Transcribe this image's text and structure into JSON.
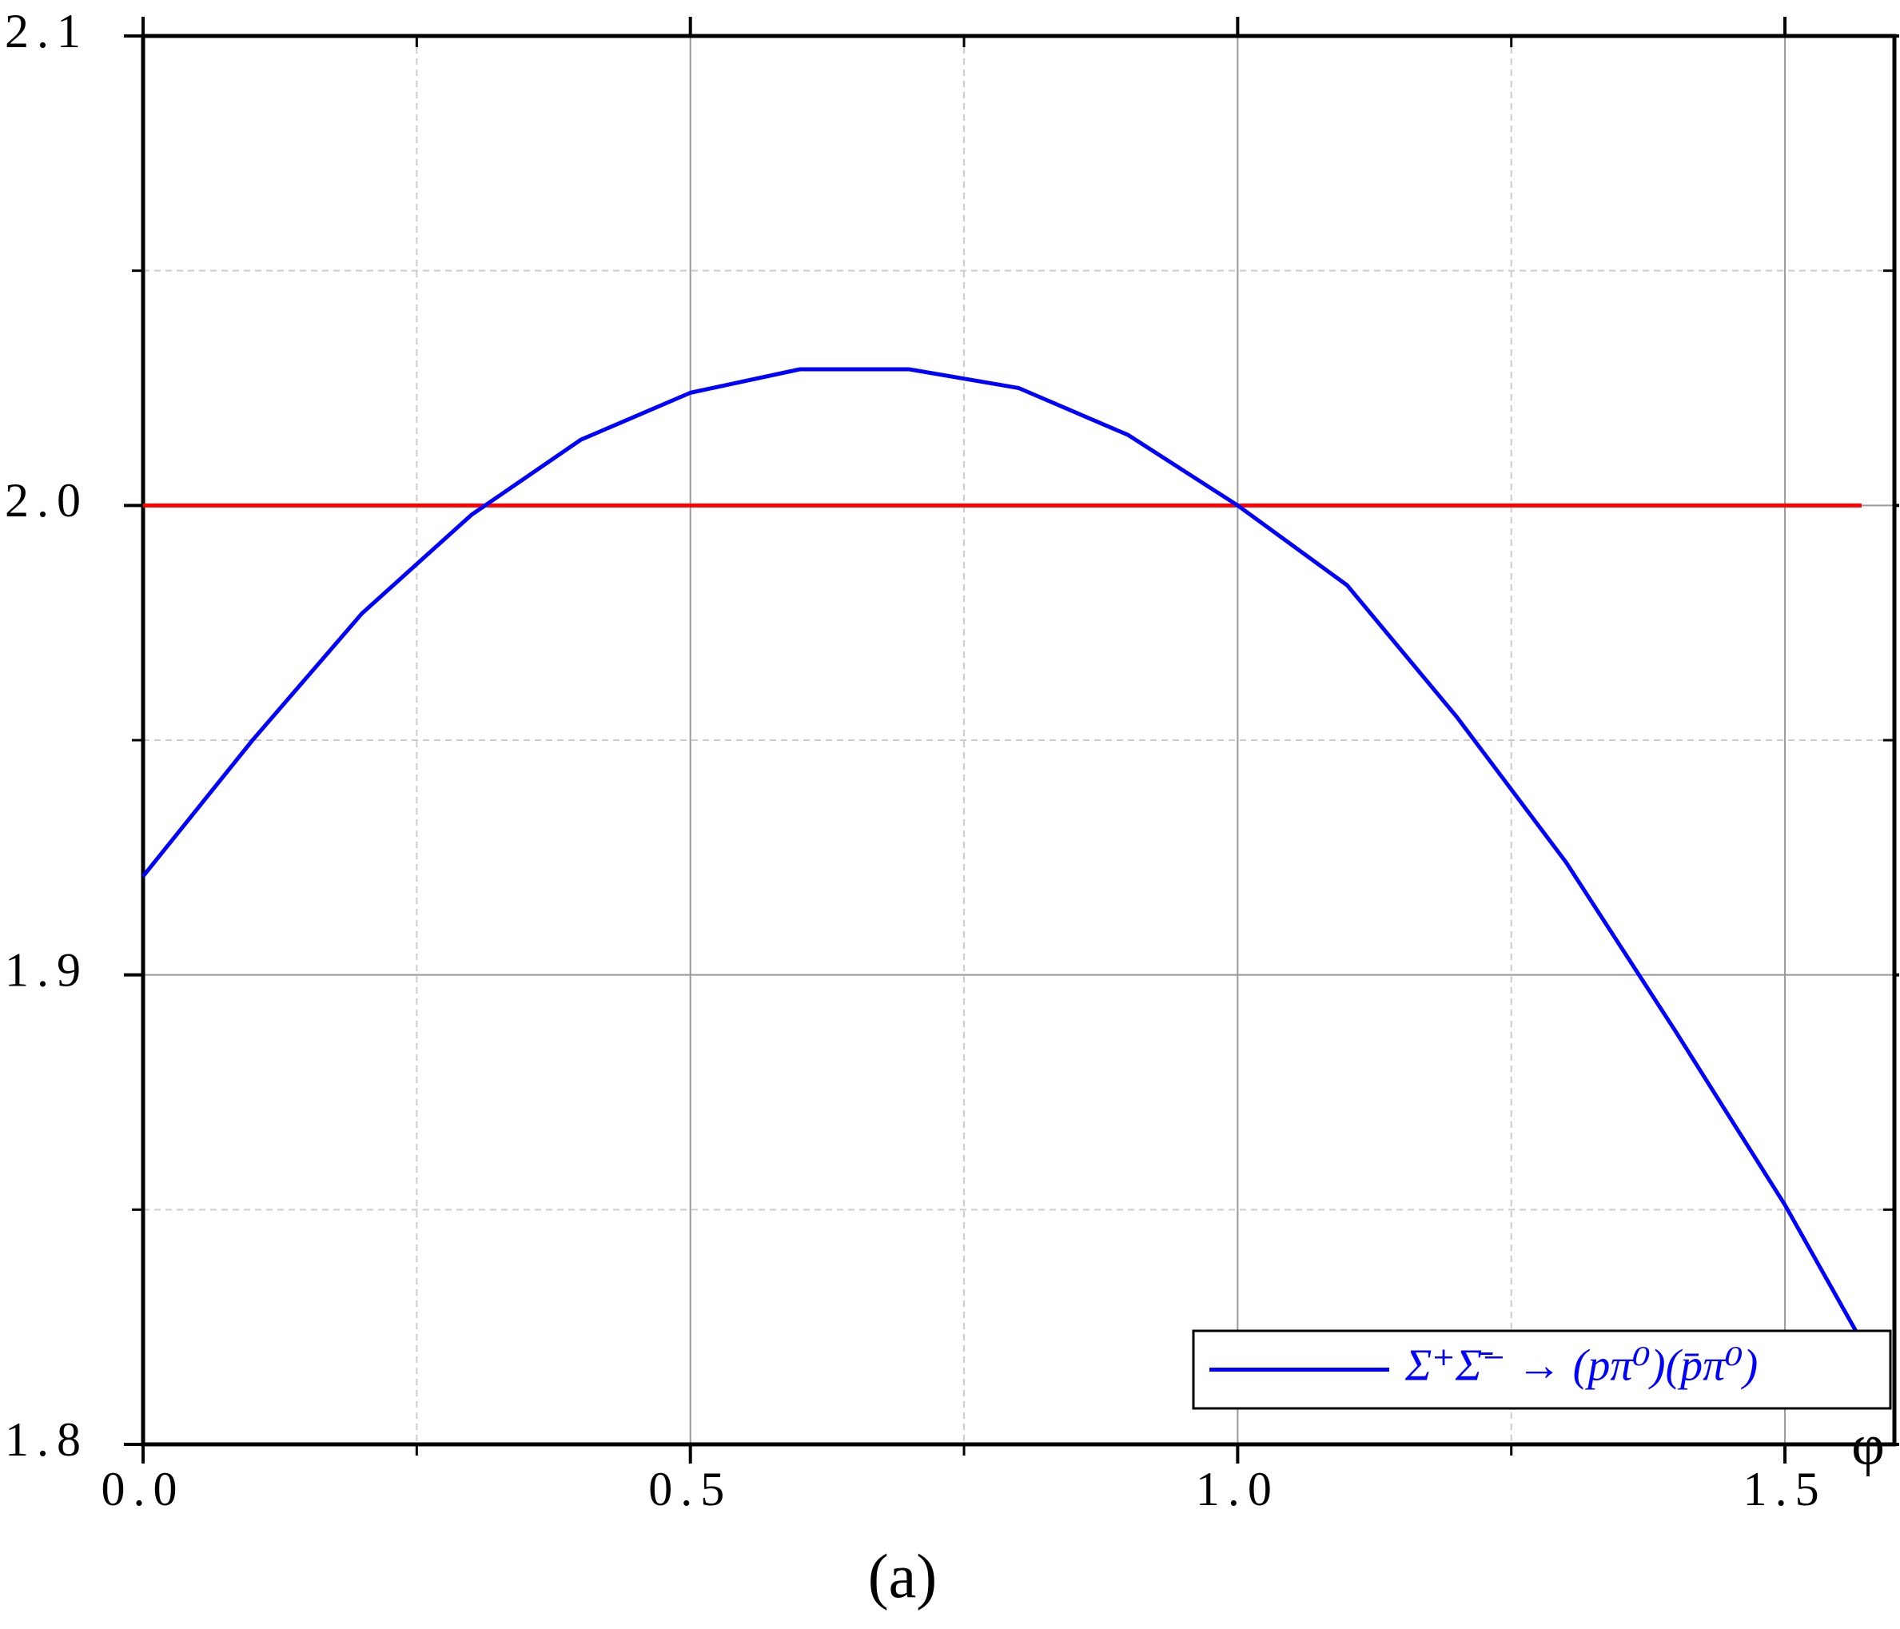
{
  "chart_data": {
    "type": "line",
    "x": [
      0,
      0.1,
      0.2,
      0.3,
      0.4,
      0.5,
      0.6,
      0.7,
      0.8,
      0.9,
      1.0,
      1.1,
      1.2,
      1.3,
      1.4,
      1.5,
      1.57
    ],
    "series": [
      {
        "name": "Σ⁺Σ̄⁻ → (pπ⁰)(p̄π⁰)",
        "color": "#0000ff",
        "values": [
          1.921,
          1.95,
          1.977,
          1.998,
          2.014,
          2.024,
          2.029,
          2.029,
          2.025,
          2.015,
          2.0,
          1.983,
          1.955,
          1.924,
          1.888,
          1.851,
          1.822
        ]
      },
      {
        "color": "#ff0000",
        "values": [
          2.0,
          2.0,
          2.0,
          2.0,
          2.0,
          2.0,
          2.0,
          2.0,
          2.0,
          2.0,
          2.0,
          2.0,
          2.0,
          2.0,
          2.0,
          2.0,
          2.0
        ]
      }
    ],
    "xlabel": "φ",
    "annotation": "(a)",
    "xlim": [
      0,
      1.6
    ],
    "ylim": [
      1.8,
      2.1
    ],
    "xticks": [
      {
        "value": 0,
        "label": "0.0"
      },
      0.5,
      {
        "value": 1,
        "label": "1.0"
      },
      1.5
    ],
    "yticks": [
      1.8,
      1.9,
      {
        "value": 2,
        "label": "2.0"
      },
      2.1
    ],
    "xminorticks": [
      0.25,
      0.75,
      1.25
    ],
    "yminorticks": [
      1.85,
      1.95,
      2.05
    ],
    "grid": true,
    "legend": "lower right"
  }
}
